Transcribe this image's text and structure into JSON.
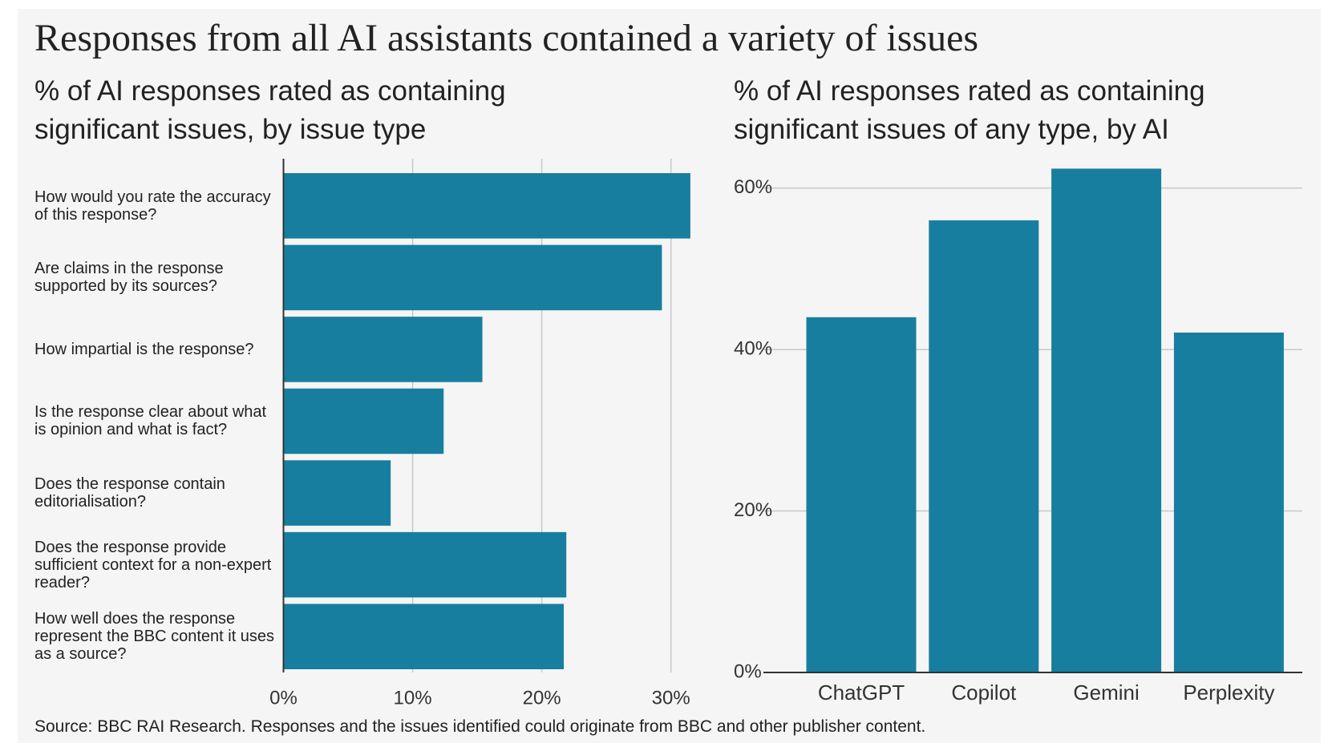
{
  "title": "Responses from all AI assistants contained a variety of issues",
  "source": "Source: BBC RAI Research. Responses and the issues identified could originate from BBC and other publisher content.",
  "chart_data": [
    {
      "type": "bar",
      "orientation": "horizontal",
      "title": "% of AI responses rated as containing significant issues, by issue type",
      "categories": [
        "How would you rate the accuracy of this response?",
        "Are claims in the response supported by its sources?",
        "How impartial is the response?",
        "Is the response clear about what is opinion and what is fact?",
        "Does the response contain editorialisation?",
        "Does the response provide sufficient context for a non-expert reader?",
        "How well does the response represent the BBC content it uses as a source?"
      ],
      "values": [
        31.5,
        29.3,
        15.4,
        12.4,
        8.3,
        21.9,
        21.7
      ],
      "color": "#177ea0",
      "xlim": [
        0,
        30
      ],
      "xticks": [
        {
          "value": 0,
          "label": "0%"
        },
        {
          "value": 10,
          "label": "10%"
        },
        {
          "value": 20,
          "label": "20%"
        },
        {
          "value": 30,
          "label": "30%"
        }
      ],
      "grid": true
    },
    {
      "type": "bar",
      "orientation": "vertical",
      "title": "% of AI responses rated as containing significant issues of any type, by AI",
      "categories": [
        "ChatGPT",
        "Copilot",
        "Gemini",
        "Perplexity"
      ],
      "values": [
        44,
        56,
        62.4,
        42.1
      ],
      "color": "#177ea0",
      "ylim": [
        0,
        60
      ],
      "yticks": [
        {
          "value": 0,
          "label": "0%"
        },
        {
          "value": 20,
          "label": "20%"
        },
        {
          "value": 40,
          "label": "40%"
        },
        {
          "value": 60,
          "label": "60%"
        }
      ],
      "grid": true
    }
  ]
}
